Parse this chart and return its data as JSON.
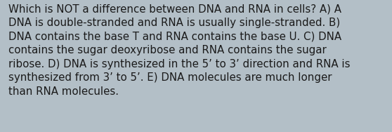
{
  "lines": [
    "Which is NOT a difference between DNA and RNA in cells? A) A",
    "DNA is double-stranded and RNA is usually single-stranded. B)",
    "DNA contains the base T and RNA contains the base U. C) DNA",
    "contains the sugar deoxyribose and RNA contains the sugar",
    "ribose. D) DNA is synthesized in the 5’ to 3’ direction and RNA is",
    "synthesized from 3’ to 5’. E) DNA molecules are much longer",
    "than RNA molecules."
  ],
  "background_color": "#b3bfc7",
  "text_color": "#1a1a1a",
  "font_size": 10.8,
  "fig_width": 5.58,
  "fig_height": 1.88,
  "dpi": 100
}
